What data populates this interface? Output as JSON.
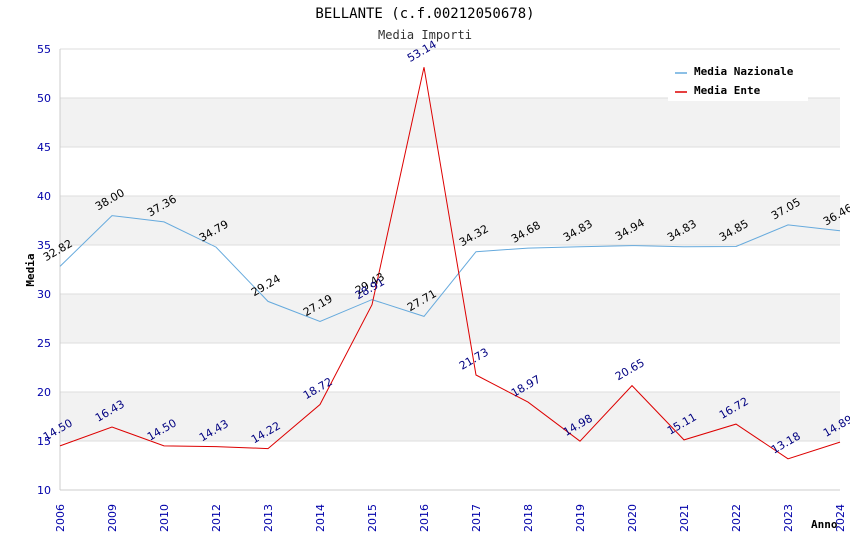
{
  "chart_data": {
    "type": "line",
    "title": "BELLANTE (c.f.00212050678)",
    "subtitle": "Media Importi",
    "xlabel": "Anno",
    "ylabel": "Media",
    "ylim": [
      10,
      55
    ],
    "yticks": [
      10,
      15,
      20,
      25,
      30,
      35,
      40,
      45,
      50,
      55
    ],
    "grid": true,
    "legend_position": "top-right",
    "x": [
      "2006",
      "2009",
      "2010",
      "2012",
      "2013",
      "2014",
      "2015",
      "2016",
      "2017",
      "2018",
      "2019",
      "2020",
      "2021",
      "2022",
      "2023",
      "2024"
    ],
    "series": [
      {
        "name": "Media Nazionale",
        "color": "#66aadd",
        "values": [
          32.82,
          38.0,
          37.36,
          34.79,
          29.24,
          27.19,
          29.43,
          27.71,
          34.32,
          34.68,
          34.83,
          34.94,
          34.83,
          34.85,
          37.05,
          36.46
        ],
        "labels": [
          "32.82",
          "38.00",
          "37.36",
          "34.79",
          "29.24",
          "27.19",
          "29.43",
          "27.71",
          "34.32",
          "34.68",
          "34.83",
          "34.94",
          "34.83",
          "34.85",
          "37.05",
          "36.46"
        ]
      },
      {
        "name": "Media Ente",
        "color": "#dd0000",
        "values": [
          14.5,
          16.43,
          14.5,
          14.43,
          14.22,
          18.72,
          28.91,
          53.14,
          21.73,
          18.97,
          14.98,
          20.65,
          15.11,
          16.72,
          13.18,
          14.89
        ],
        "labels": [
          "14.50",
          "16.43",
          "14.50",
          "14.43",
          "14.22",
          "18.72",
          "28.91",
          "53.14",
          "21.73",
          "18.97",
          "14.98",
          "20.65",
          "15.11",
          "16.72",
          "13.18",
          "14.89"
        ]
      }
    ]
  }
}
